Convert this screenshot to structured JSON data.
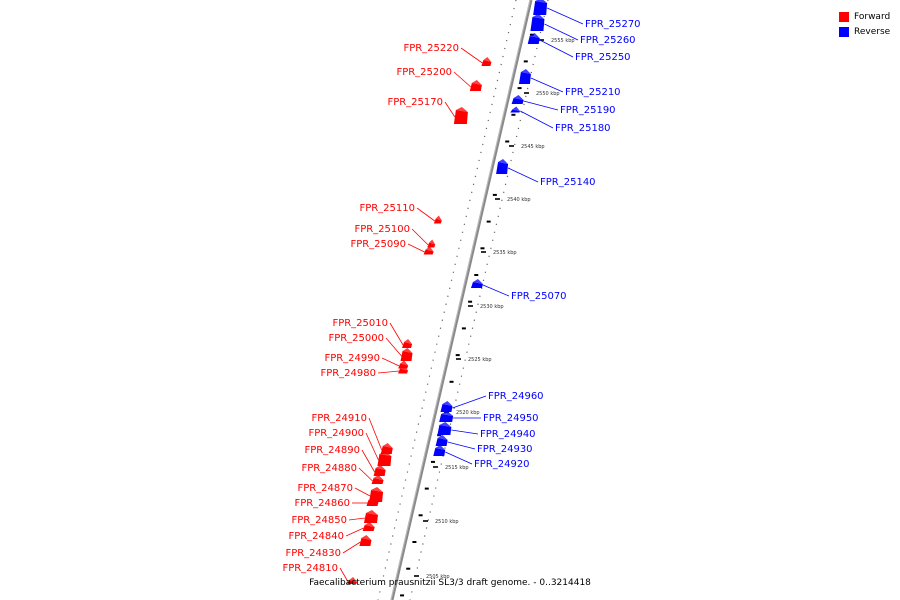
{
  "legend": {
    "forward_label": "Forward",
    "reverse_label": "Reverse",
    "forward_color": "#ff0000",
    "reverse_color": "#0000ff"
  },
  "caption": "Faecalibacterium prausnitzii SL3/3 draft genome. - 0..3214418",
  "ticks": [
    "2555 kbp",
    "2550 kbp",
    "2545 kbp",
    "2540 kbp",
    "2535 kbp",
    "2530 kbp",
    "2525 kbp",
    "2520 kbp",
    "2515 kbp",
    "2510 kbp",
    "2505 kbp"
  ],
  "forward_genes": [
    "FPR_25220",
    "FPR_25200",
    "FPR_25170",
    "FPR_25110",
    "FPR_25100",
    "FPR_25090",
    "FPR_25010",
    "FPR_25000",
    "FPR_24990",
    "FPR_24980",
    "FPR_24910",
    "FPR_24900",
    "FPR_24890",
    "FPR_24880",
    "FPR_24870",
    "FPR_24860",
    "FPR_24850",
    "FPR_24840",
    "FPR_24830",
    "FPR_24810"
  ],
  "reverse_genes": [
    "FPR_25270",
    "FPR_25260",
    "FPR_25250",
    "FPR_25210",
    "FPR_25190",
    "FPR_25180",
    "FPR_25140",
    "FPR_25070",
    "FPR_24960",
    "FPR_24950",
    "FPR_24940",
    "FPR_24930",
    "FPR_24920"
  ]
}
